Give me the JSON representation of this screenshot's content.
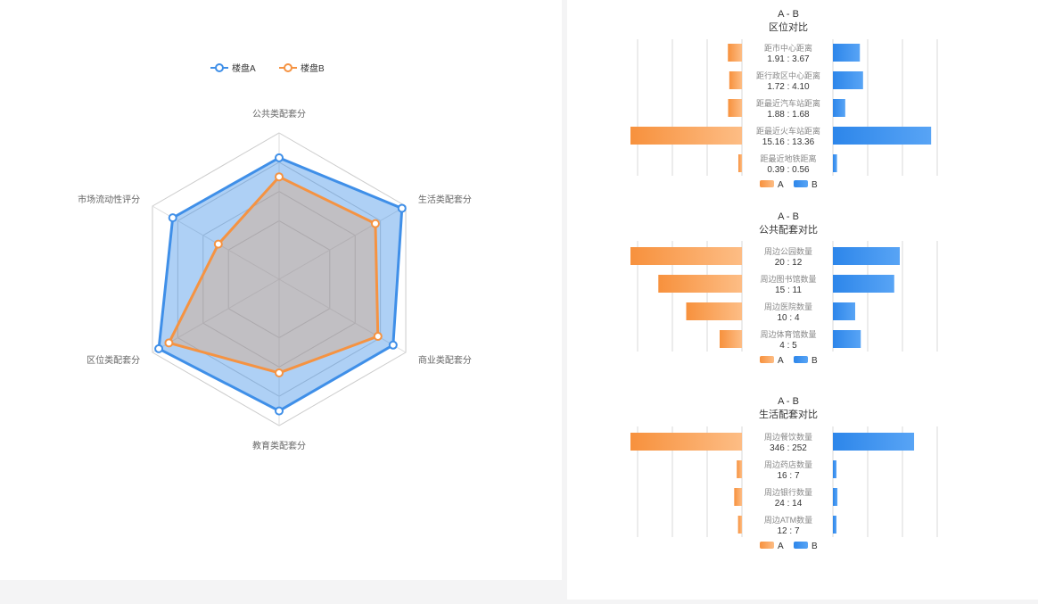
{
  "chart_data": [
    {
      "type": "radar",
      "legend_position": "top-center",
      "series_colors": [
        "#3f8fe8",
        "#f59342"
      ],
      "axes": [
        "公共类配套分",
        "生活类配套分",
        "商业类配套分",
        "教育类配套分",
        "区位类配套分",
        "市场流动性评分"
      ],
      "axis_max": 100,
      "series": [
        {
          "name": "楼盘A",
          "values": [
            83,
            97,
            90,
            90,
            95,
            84
          ]
        },
        {
          "name": "楼盘B",
          "values": [
            70,
            76,
            78,
            64,
            87,
            48
          ]
        }
      ]
    },
    {
      "type": "bar",
      "orientation": "horizontal-mirrored",
      "header": "A - B",
      "title": "区位对比",
      "categories": [
        "距市中心距离",
        "距行政区中心距离",
        "距最近汽车站距离",
        "距最近火车站距离",
        "距最近地铁距离"
      ],
      "value_labels": [
        "1.91 : 3.67",
        "1.72 : 4.10",
        "1.88 : 1.68",
        "15.16 : 13.36",
        "0.39 : 0.56"
      ],
      "series": [
        {
          "name": "A",
          "values": [
            1.91,
            1.72,
            1.88,
            15.16,
            0.39
          ]
        },
        {
          "name": "B",
          "values": [
            3.67,
            4.1,
            1.68,
            13.36,
            0.56
          ]
        }
      ],
      "max": 15.16
    },
    {
      "type": "bar",
      "orientation": "horizontal-mirrored",
      "header": "A - B",
      "title": "公共配套对比",
      "categories": [
        "周边公园数量",
        "周边图书馆数量",
        "周边医院数量",
        "周边体育馆数量"
      ],
      "value_labels": [
        "20 : 12",
        "15 : 11",
        "10 : 4",
        "4 : 5"
      ],
      "series": [
        {
          "name": "A",
          "values": [
            20,
            15,
            10,
            4
          ]
        },
        {
          "name": "B",
          "values": [
            12,
            11,
            4,
            5
          ]
        }
      ],
      "max": 20
    },
    {
      "type": "bar",
      "orientation": "horizontal-mirrored",
      "header": "A - B",
      "title": "生活配套对比",
      "categories": [
        "周边餐饮数量",
        "周边药店数量",
        "周边银行数量",
        "周边ATM数量"
      ],
      "value_labels": [
        "346 : 252",
        "16 : 7",
        "24 : 14",
        "12 : 7"
      ],
      "series": [
        {
          "name": "A",
          "values": [
            346,
            16,
            24,
            12
          ]
        },
        {
          "name": "B",
          "values": [
            252,
            7,
            14,
            7
          ]
        }
      ],
      "max": 346
    }
  ]
}
